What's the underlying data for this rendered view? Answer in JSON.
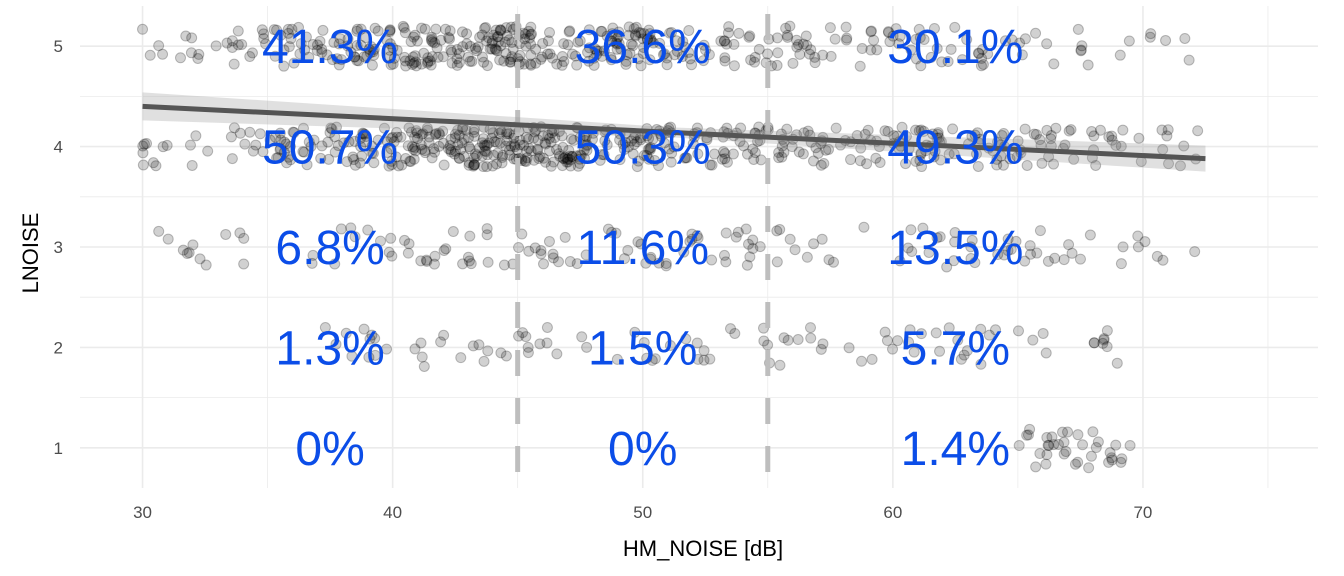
{
  "chart_data": {
    "type": "scatter",
    "title": "",
    "xlabel": "HM_NOISE [dB]",
    "ylabel": "LNOISE",
    "xlim": [
      27.5,
      77
    ],
    "ylim": [
      0.6,
      5.4
    ],
    "x_ticks": [
      30,
      40,
      50,
      60,
      70
    ],
    "x_ticks_labels": [
      "30",
      "40",
      "50",
      "60",
      "70"
    ],
    "y_ticks": [
      1,
      2,
      3,
      4,
      5
    ],
    "y_ticks_labels": [
      "1",
      "2",
      "3",
      "4",
      "5"
    ],
    "grid": true,
    "legend": "none",
    "point_color": "#000000",
    "point_alpha": 0.18,
    "annotation_color": "#0b4de8",
    "vertical_dashed_lines": [
      45,
      55
    ],
    "trend_line": {
      "from": [
        30,
        4.4
      ],
      "to": [
        72.5,
        3.88
      ],
      "confidence_band": true
    },
    "clusters": [
      {
        "y": 5,
        "x_min": 30,
        "x_max": 72,
        "weights": [
          2,
          6,
          10,
          7,
          4,
          3,
          2,
          1
        ]
      },
      {
        "y": 4,
        "x_min": 30,
        "x_max": 72.5,
        "weights": [
          2,
          6,
          12,
          9,
          5,
          5,
          4,
          2
        ]
      },
      {
        "y": 3,
        "x_min": 30,
        "x_max": 72.2,
        "weights": [
          1,
          1,
          2,
          2,
          2,
          1,
          2,
          1
        ]
      },
      {
        "y": 2,
        "x_min": 37,
        "x_max": 69,
        "weights": [
          1,
          1,
          1,
          1,
          1,
          1,
          1,
          1
        ]
      },
      {
        "y": 1,
        "x_min": 57,
        "x_max": 69.5,
        "weights": [
          0,
          0,
          0,
          0,
          0,
          1,
          1,
          1
        ]
      }
    ],
    "annotations": [
      {
        "x": 37.5,
        "y": 5,
        "text": "41.3%"
      },
      {
        "x": 50,
        "y": 5,
        "text": "36.6%"
      },
      {
        "x": 62.5,
        "y": 5,
        "text": "30.1%"
      },
      {
        "x": 37.5,
        "y": 4,
        "text": "50.7%"
      },
      {
        "x": 50,
        "y": 4,
        "text": "50.3%"
      },
      {
        "x": 62.5,
        "y": 4,
        "text": "49.3%"
      },
      {
        "x": 37.5,
        "y": 3,
        "text": "6.8%"
      },
      {
        "x": 50,
        "y": 3,
        "text": "11.6%"
      },
      {
        "x": 62.5,
        "y": 3,
        "text": "13.5%"
      },
      {
        "x": 37.5,
        "y": 2,
        "text": "1.3%"
      },
      {
        "x": 50,
        "y": 2,
        "text": "1.5%"
      },
      {
        "x": 62.5,
        "y": 2,
        "text": "5.7%"
      },
      {
        "x": 37.5,
        "y": 1,
        "text": "0%"
      },
      {
        "x": 50,
        "y": 1,
        "text": "0%"
      },
      {
        "x": 62.5,
        "y": 1,
        "text": "1.4%"
      }
    ]
  }
}
